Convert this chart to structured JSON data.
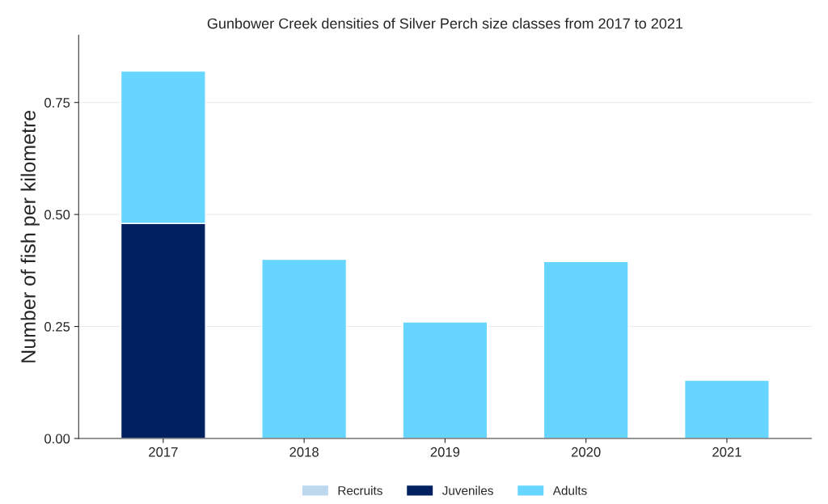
{
  "chart_data": {
    "type": "bar",
    "title": "Gunbower Creek densities of Silver Perch size classes from 2017 to 2021",
    "ylabel": "Number of fish per kilometre",
    "categories": [
      "2017",
      "2018",
      "2019",
      "2020",
      "2021"
    ],
    "stacked": true,
    "series": [
      {
        "name": "Recruits",
        "color": "#bdd7ee",
        "values": [
          0,
          0,
          0,
          0,
          0
        ]
      },
      {
        "name": "Juveniles",
        "color": "#002060",
        "values": [
          0.48,
          0,
          0,
          0,
          0
        ]
      },
      {
        "name": "Adults",
        "color": "#66d5ff",
        "values": [
          0.34,
          0.4,
          0.26,
          0.395,
          0.13
        ]
      }
    ],
    "ylim": [
      0,
      0.9
    ],
    "yticks": [
      {
        "value": 0,
        "label": "0.00"
      },
      {
        "value": 0.25,
        "label": "0.25"
      },
      {
        "value": 0.5,
        "label": "0.50"
      },
      {
        "value": 0.75,
        "label": "0.75"
      }
    ],
    "grid": "y",
    "legend": "bottom"
  }
}
